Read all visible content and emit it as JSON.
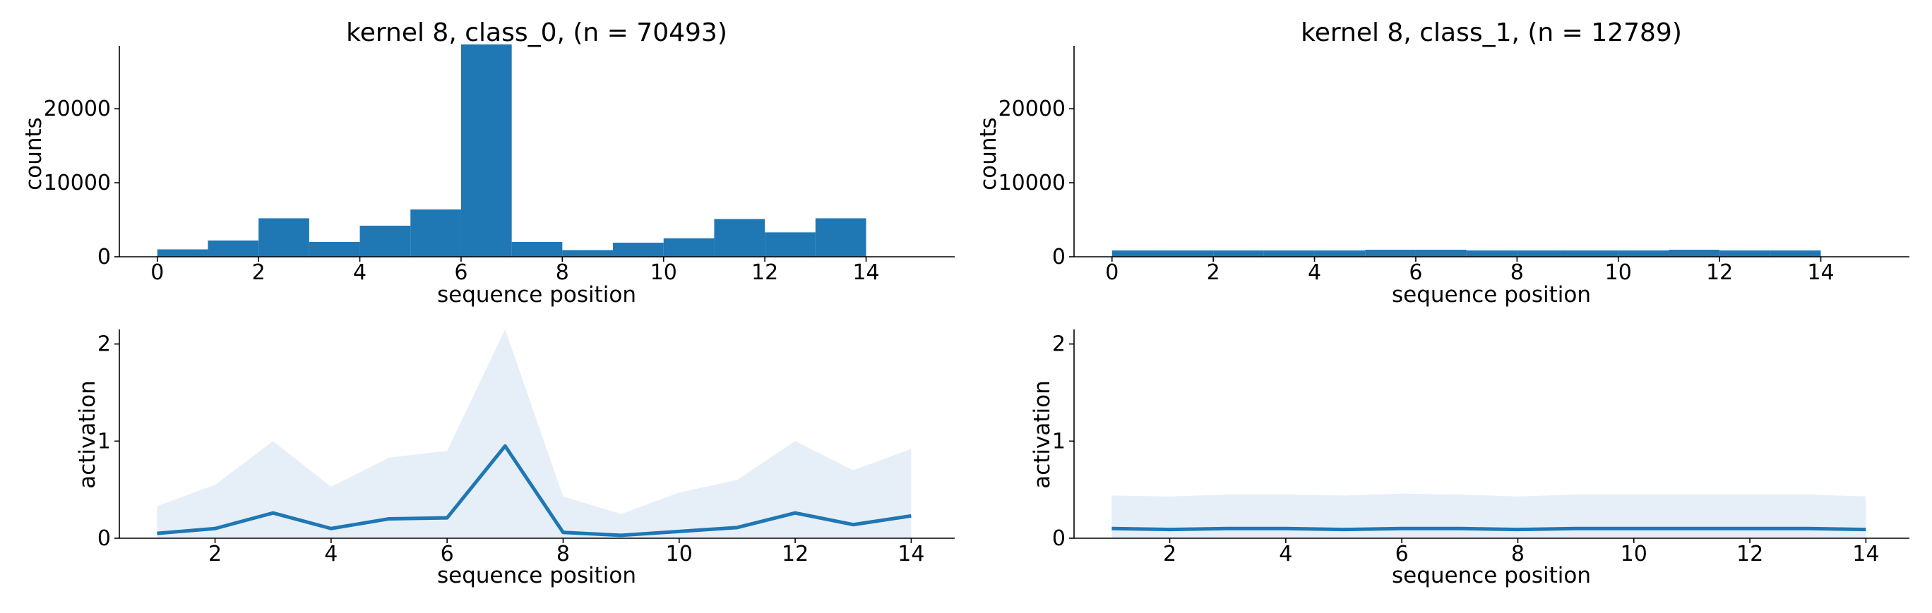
{
  "figure": {
    "background": "#ffffff",
    "accent": "#1f77b4",
    "band_color": "#dce8f4"
  },
  "chart_data": [
    {
      "type": "bar",
      "panel": "top-left",
      "title": "kernel 8, class_0, (n = 70493)",
      "xlabel": "sequence position",
      "ylabel": "counts",
      "xlim": [
        -0.75,
        15.75
      ],
      "ylim": [
        0,
        28500
      ],
      "xticks": [
        0,
        2,
        4,
        6,
        8,
        10,
        12,
        14
      ],
      "xtick_labels": [
        "0",
        "2",
        "4",
        "6",
        "8",
        "10",
        "12",
        "14"
      ],
      "yticks": [
        0,
        10000,
        20000
      ],
      "ytick_labels": [
        "0",
        "10000",
        "20000"
      ],
      "bin_edges": [
        0,
        1,
        2,
        3,
        4,
        5,
        6,
        7,
        8,
        9,
        10,
        11,
        12,
        13,
        14
      ],
      "values": [
        1000,
        2200,
        5200,
        2000,
        4200,
        6400,
        28700,
        2000,
        900,
        1900,
        2500,
        5100,
        3300,
        5200
      ],
      "color": "#1f77b4"
    },
    {
      "type": "bar",
      "panel": "top-right",
      "title": "kernel 8, class_1, (n = 12789)",
      "xlabel": "sequence position",
      "ylabel": "counts",
      "xlim": [
        -0.75,
        15.75
      ],
      "ylim": [
        0,
        28500
      ],
      "xticks": [
        0,
        2,
        4,
        6,
        8,
        10,
        12,
        14
      ],
      "xtick_labels": [
        "0",
        "2",
        "4",
        "6",
        "8",
        "10",
        "12",
        "14"
      ],
      "yticks": [
        0,
        10000,
        20000
      ],
      "ytick_labels": [
        "0",
        "10000",
        "20000"
      ],
      "bin_edges": [
        0,
        1,
        2,
        3,
        4,
        5,
        6,
        7,
        8,
        9,
        10,
        11,
        12,
        13,
        14
      ],
      "values": [
        850,
        850,
        850,
        850,
        850,
        950,
        950,
        850,
        850,
        850,
        850,
        950,
        850,
        850
      ],
      "color": "#1f77b4"
    },
    {
      "type": "line",
      "panel": "bottom-left",
      "title": "",
      "xlabel": "sequence position",
      "ylabel": "activation",
      "xlim": [
        0.35,
        14.75
      ],
      "ylim": [
        0,
        2.15
      ],
      "xticks": [
        2,
        4,
        6,
        8,
        10,
        12,
        14
      ],
      "xtick_labels": [
        "2",
        "4",
        "6",
        "8",
        "10",
        "12",
        "14"
      ],
      "yticks": [
        0,
        1,
        2
      ],
      "ytick_labels": [
        "0",
        "1",
        "2"
      ],
      "x": [
        1,
        2,
        3,
        4,
        5,
        6,
        7,
        8,
        9,
        10,
        11,
        12,
        13,
        14
      ],
      "series": [
        {
          "values": [
            0.05,
            0.1,
            0.26,
            0.1,
            0.2,
            0.21,
            0.95,
            0.06,
            0.03,
            0.07,
            0.11,
            0.26,
            0.14,
            0.23
          ],
          "band_upper": [
            0.33,
            0.55,
            1.0,
            0.53,
            0.83,
            0.9,
            2.17,
            0.43,
            0.25,
            0.47,
            0.6,
            1.0,
            0.7,
            0.92
          ],
          "band_lower": [
            0,
            0,
            0,
            0,
            0,
            0,
            0,
            0,
            0,
            0,
            0,
            0,
            0,
            0
          ],
          "color": "#1f77b4"
        }
      ]
    },
    {
      "type": "line",
      "panel": "bottom-right",
      "title": "",
      "xlabel": "sequence position",
      "ylabel": "activation",
      "xlim": [
        0.35,
        14.75
      ],
      "ylim": [
        0,
        2.15
      ],
      "xticks": [
        2,
        4,
        6,
        8,
        10,
        12,
        14
      ],
      "xtick_labels": [
        "2",
        "4",
        "6",
        "8",
        "10",
        "12",
        "14"
      ],
      "yticks": [
        0,
        1,
        2
      ],
      "ytick_labels": [
        "0",
        "1",
        "2"
      ],
      "x": [
        1,
        2,
        3,
        4,
        5,
        6,
        7,
        8,
        9,
        10,
        11,
        12,
        13,
        14
      ],
      "series": [
        {
          "values": [
            0.1,
            0.09,
            0.1,
            0.1,
            0.09,
            0.1,
            0.1,
            0.09,
            0.1,
            0.1,
            0.1,
            0.1,
            0.1,
            0.09
          ],
          "band_upper": [
            0.44,
            0.43,
            0.45,
            0.45,
            0.44,
            0.46,
            0.45,
            0.43,
            0.45,
            0.45,
            0.45,
            0.45,
            0.45,
            0.43
          ],
          "band_lower": [
            0,
            0,
            0,
            0,
            0,
            0,
            0,
            0,
            0,
            0,
            0,
            0,
            0,
            0
          ],
          "color": "#1f77b4"
        }
      ]
    }
  ]
}
